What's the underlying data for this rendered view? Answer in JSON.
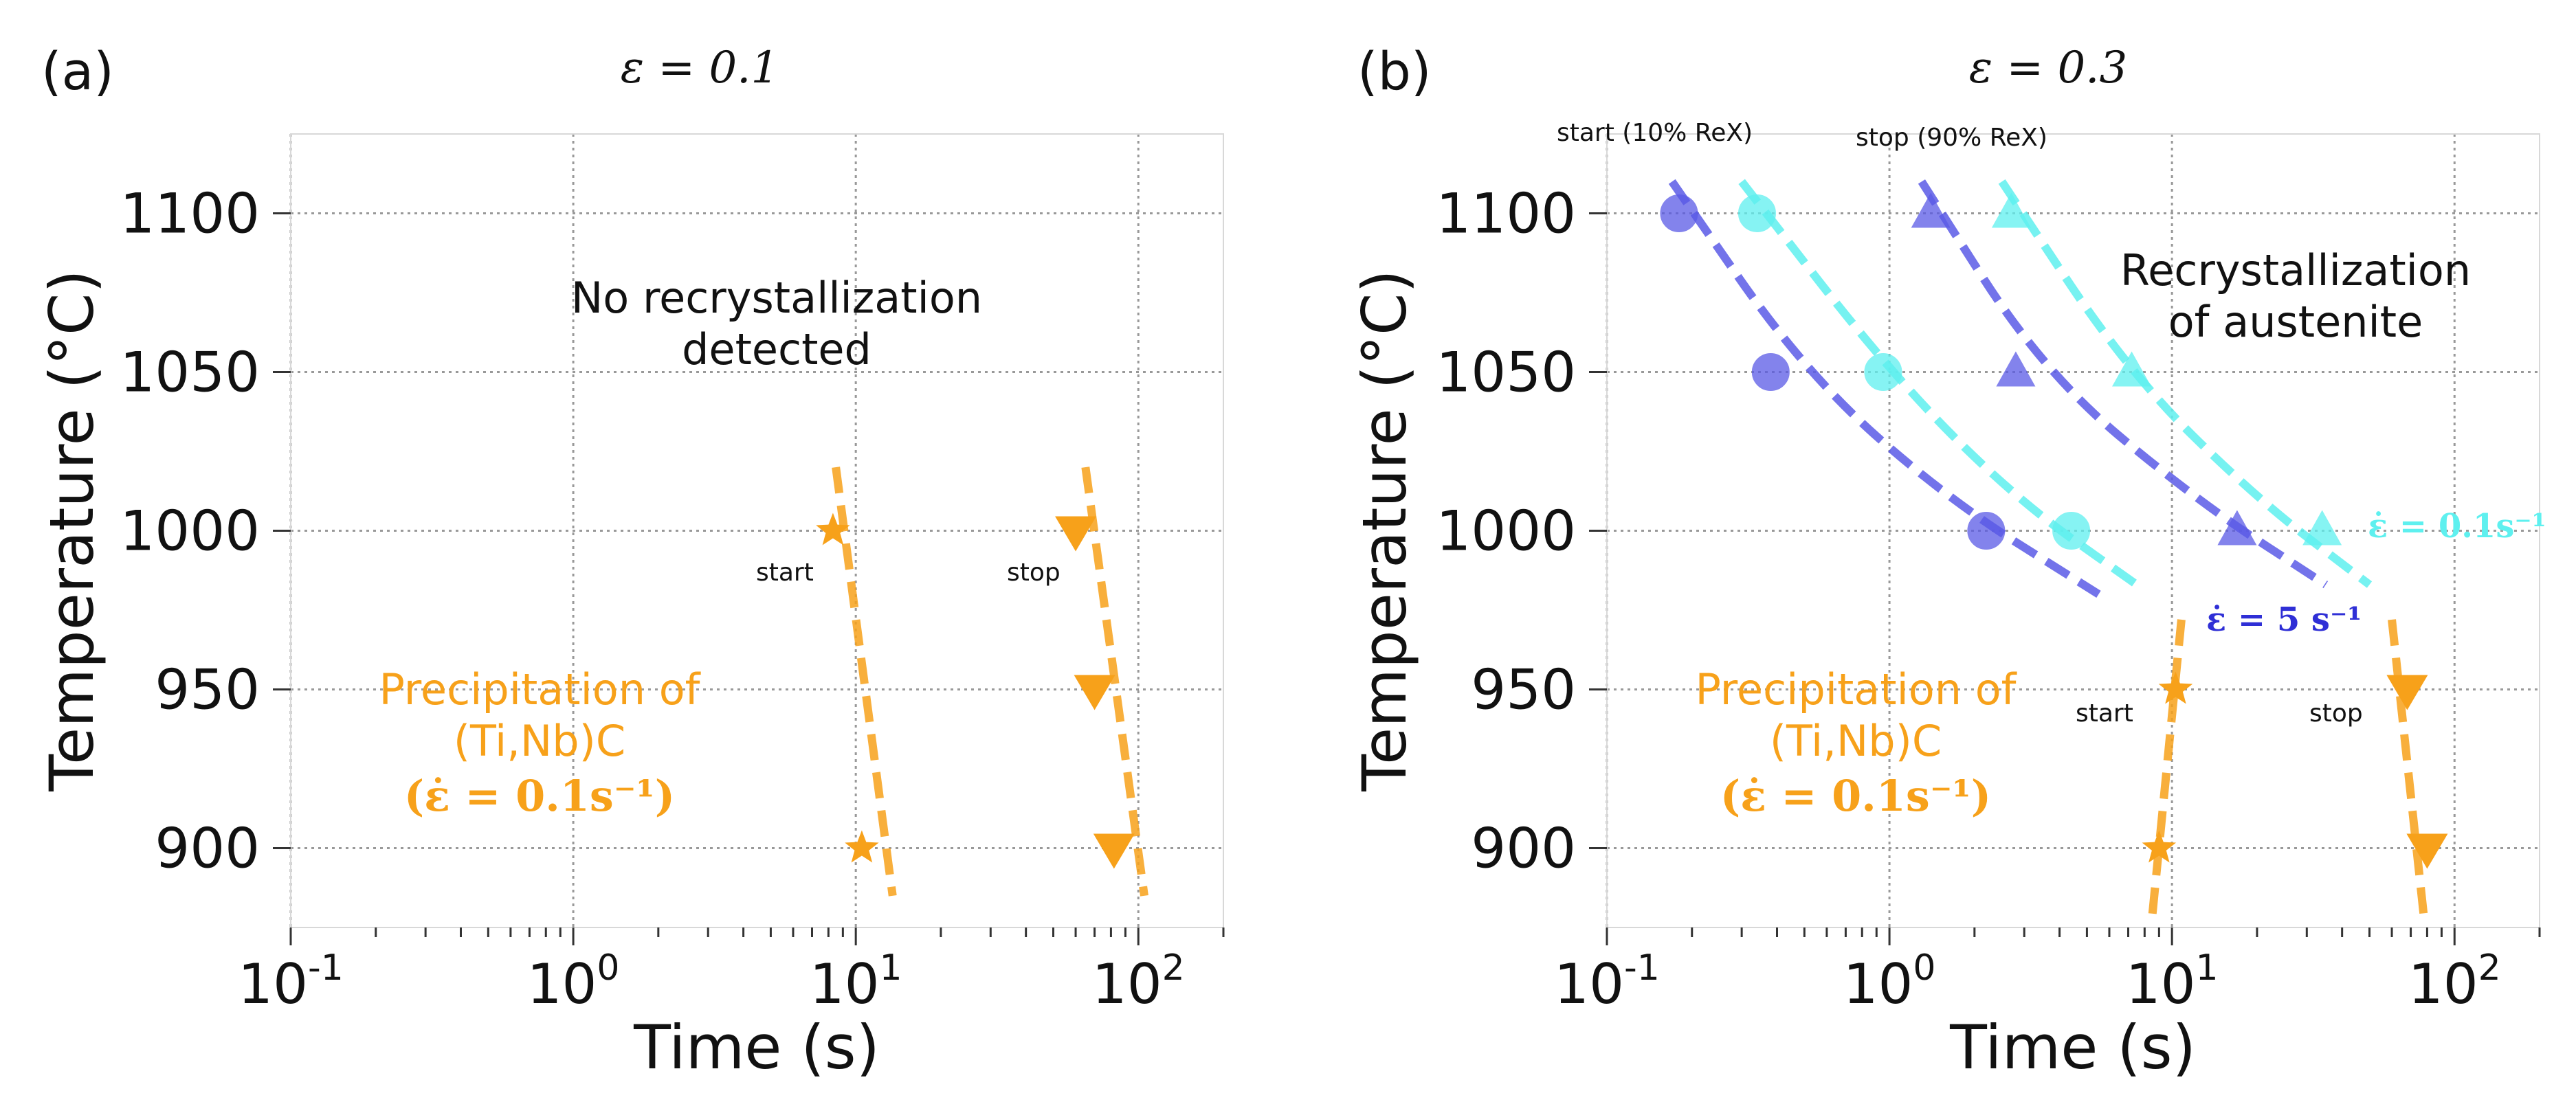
{
  "chart_data": [
    {
      "type": "scatter",
      "panel_label": "(a)",
      "title": "ε = 0.1",
      "xlabel": "Time (s)",
      "ylabel": "Temperature (°C)",
      "xscale": "log",
      "xlim": [
        0.1,
        200
      ],
      "ylim": [
        875,
        1125
      ],
      "xticks": [
        0.1,
        1,
        10,
        100
      ],
      "xtick_labels": [
        "10-1",
        "100",
        "101",
        "102"
      ],
      "yticks": [
        900,
        950,
        1000,
        1050,
        1100
      ],
      "ytick_labels": [
        "900",
        "950",
        "1000",
        "1050",
        "1100"
      ],
      "grid": true,
      "series": [
        {
          "name": "start",
          "marker": "star",
          "color": "#f7a11a",
          "x": [
            8.3,
            10.5
          ],
          "y": [
            1000,
            900
          ],
          "fit_line": {
            "x": [
              8.5,
              13.5
            ],
            "y": [
              1020,
              885
            ]
          }
        },
        {
          "name": "stop",
          "marker": "triangle-down",
          "color": "#f7a11a",
          "x": [
            60,
            70,
            82
          ],
          "y": [
            1000,
            950,
            900
          ],
          "fit_line": {
            "x": [
              65,
              105
            ],
            "y": [
              1020,
              885
            ]
          }
        }
      ],
      "annotations": {
        "region_label": [
          "No recrystallization",
          "detected"
        ],
        "precip_label": [
          "Precipitation of",
          "(Ti,Nb)C",
          "(ε̇ = 0.1s⁻¹)"
        ],
        "start_label": "start",
        "stop_label": "stop"
      }
    },
    {
      "type": "scatter",
      "panel_label": "(b)",
      "title": "ε = 0.3",
      "xlabel": "Time (s)",
      "ylabel": "Temperature (°C)",
      "xscale": "log",
      "xlim": [
        0.1,
        200
      ],
      "ylim": [
        875,
        1125
      ],
      "xticks": [
        0.1,
        1,
        10,
        100
      ],
      "xtick_labels": [
        "10-1",
        "100",
        "101",
        "102"
      ],
      "yticks": [
        900,
        950,
        1000,
        1050,
        1100
      ],
      "ytick_labels": [
        "900",
        "950",
        "1000",
        "1050",
        "1100"
      ],
      "grid": true,
      "series": [
        {
          "name": "start (10% ReX), ε̇ = 5 s⁻¹",
          "marker": "circle",
          "color": "#5a5ae6",
          "x": [
            0.18,
            0.38,
            2.2
          ],
          "y": [
            1100,
            1050,
            1000
          ],
          "fit_line": {
            "x": [
              0.17,
              0.5,
              1.6,
              5.5
            ],
            "y": [
              1110,
              1050,
              1010,
              980
            ]
          }
        },
        {
          "name": "start (10% ReX), ε̇ = 0.1 s⁻¹",
          "marker": "circle",
          "color": "#5ef0ef",
          "x": [
            0.34,
            0.95,
            4.4
          ],
          "y": [
            1100,
            1050,
            1000
          ],
          "fit_line": {
            "x": [
              0.3,
              1.0,
              2.8,
              7.5
            ],
            "y": [
              1110,
              1050,
              1010,
              983
            ]
          }
        },
        {
          "name": "stop (90% ReX), ε̇ = 5 s⁻¹",
          "marker": "triangle-up",
          "color": "#5a5ae6",
          "x": [
            1.4,
            2.8,
            17
          ],
          "y": [
            1100,
            1050,
            1000
          ],
          "fit_line": {
            "x": [
              1.3,
              3.5,
              12,
              35
            ],
            "y": [
              1110,
              1050,
              1010,
              983
            ]
          }
        },
        {
          "name": "stop (90% ReX), ε̇ = 0.1 s⁻¹",
          "marker": "triangle-up",
          "color": "#5ef0ef",
          "x": [
            2.7,
            7.2,
            34
          ],
          "y": [
            1100,
            1050,
            1000
          ],
          "fit_line": {
            "x": [
              2.5,
              7.0,
              20,
              50
            ],
            "y": [
              1110,
              1050,
              1010,
              983
            ]
          }
        },
        {
          "name": "precipitation start",
          "marker": "star",
          "color": "#f7a11a",
          "x": [
            10.3,
            9.0
          ],
          "y": [
            950,
            900
          ],
          "fit_line": {
            "x": [
              10.8,
              8.5
            ],
            "y": [
              972,
              878
            ]
          }
        },
        {
          "name": "precipitation stop",
          "marker": "triangle-down",
          "color": "#f7a11a",
          "x": [
            68,
            80
          ],
          "y": [
            950,
            900
          ],
          "fit_line": {
            "x": [
              60,
              78
            ],
            "y": [
              972,
              878
            ]
          }
        }
      ],
      "annotations": {
        "start_rex_label": "start (10% ReX)",
        "stop_rex_label": "stop (90% ReX)",
        "region_label": [
          "Recrystallization",
          "of austenite"
        ],
        "rate_label_fast": "ε̇ = 5 s⁻¹",
        "rate_label_slow": "ε̇ = 0.1s⁻¹",
        "precip_label": [
          "Precipitation of",
          "(Ti,Nb)C",
          "(ε̇ = 0.1s⁻¹)"
        ],
        "start_label": "start",
        "stop_label": "stop"
      }
    }
  ]
}
